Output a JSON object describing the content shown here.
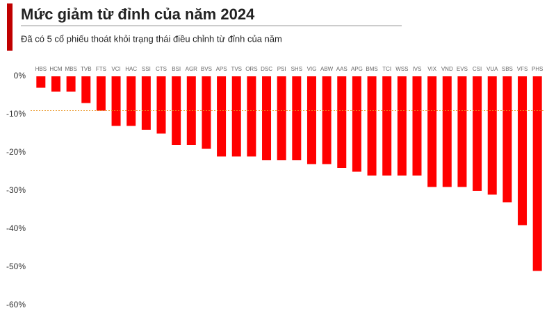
{
  "chart_data": {
    "type": "bar",
    "title": "Mức giảm từ đỉnh của năm 2024",
    "subtitle": "Đã có 5 cổ phiếu thoát khỏi trạng thái điều chỉnh từ đỉnh của năm",
    "categories": [
      "HBS",
      "HCM",
      "MBS",
      "TVB",
      "FTS",
      "VCI",
      "HAC",
      "SSI",
      "CTS",
      "BSI",
      "AGR",
      "BVS",
      "APS",
      "TVS",
      "ORS",
      "DSC",
      "PSI",
      "SHS",
      "VIG",
      "ABW",
      "AAS",
      "APG",
      "BMS",
      "TCI",
      "WSS",
      "IVS",
      "VIX",
      "VND",
      "EVS",
      "CSI",
      "VUA",
      "SBS",
      "VFS",
      "PHS"
    ],
    "values": [
      -3,
      -4,
      -4,
      -7,
      -9,
      -13,
      -13,
      -14,
      -15,
      -18,
      -18,
      -19,
      -21,
      -21,
      -21,
      -22,
      -22,
      -22,
      -23,
      -23,
      -24,
      -25,
      -26,
      -26,
      -26,
      -26,
      -29,
      -29,
      -29,
      -30,
      -31,
      -33,
      -39,
      -51
    ],
    "color": "#ff0000",
    "ylim": [
      -60,
      0
    ],
    "yticks": [
      {
        "value": 0,
        "label": "0%"
      },
      {
        "value": -10,
        "label": "-10%"
      },
      {
        "value": -20,
        "label": "-20%"
      },
      {
        "value": -30,
        "label": "-30%"
      },
      {
        "value": -40,
        "label": "-40%"
      },
      {
        "value": -50,
        "label": "-50%"
      },
      {
        "value": -60,
        "label": "-60%"
      }
    ],
    "reference_line": -9,
    "reference_color": "#e8901a",
    "grid": false
  }
}
